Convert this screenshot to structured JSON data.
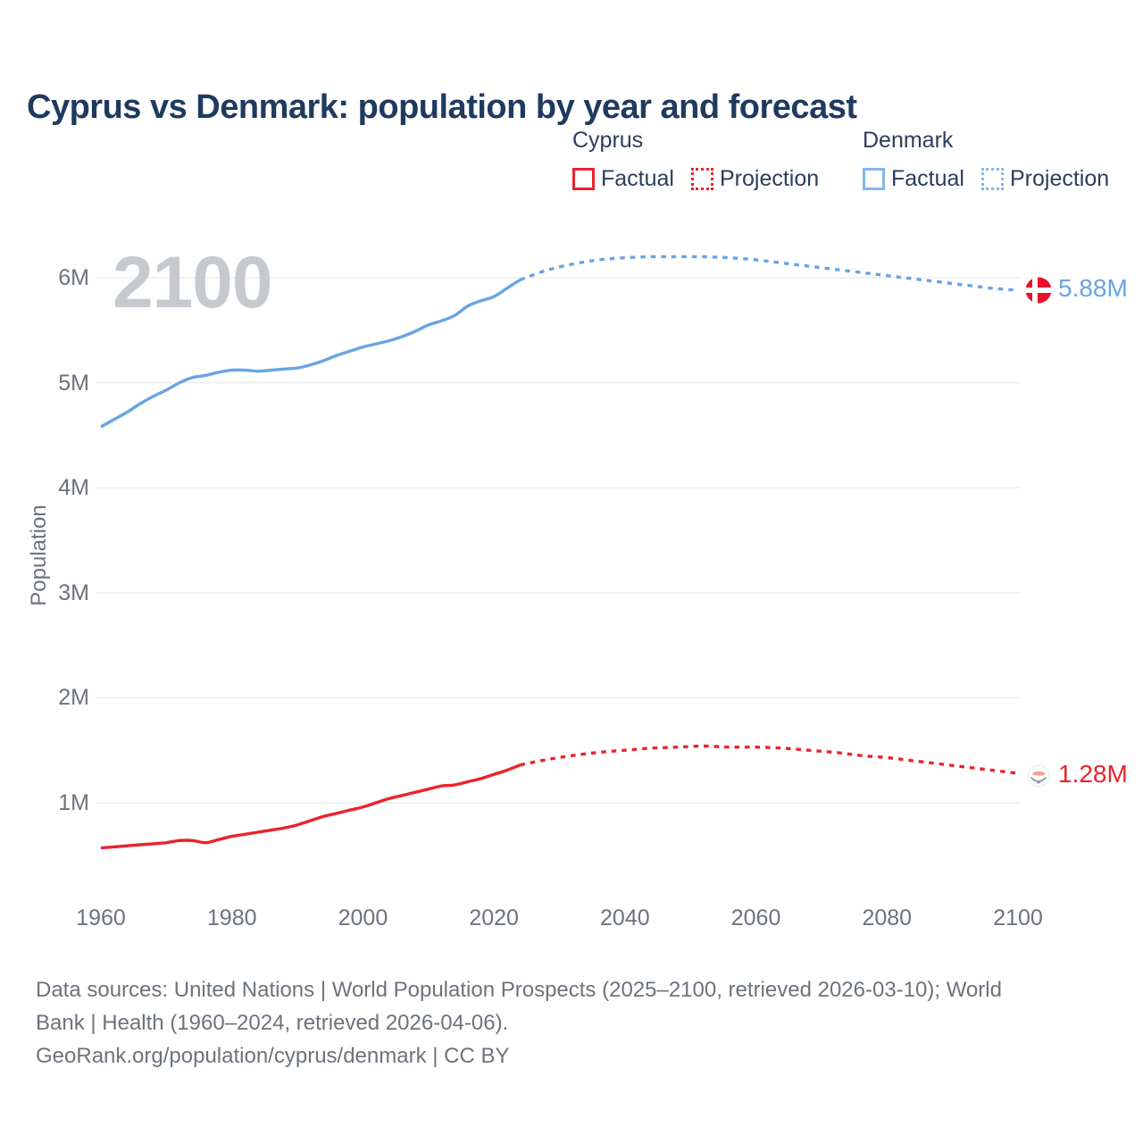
{
  "title": "Cyprus vs Denmark: population by year and forecast",
  "watermark": "2100",
  "colors": {
    "cyprus_red": "#e9242b",
    "denmark_blue": "#69a4e1",
    "denmark_swatch_blue": "#85b7ea",
    "flag_red": "#e8122d",
    "title_navy": "#1f3a5f",
    "axis_gray": "#6d727a",
    "gridline": "#ededee",
    "watermark_gray": "#c6c9ce"
  },
  "legend": {
    "groups": [
      {
        "name": "Cyprus",
        "color": "#e9242b",
        "items": [
          {
            "label": "Factual",
            "dash": false
          },
          {
            "label": "Projection",
            "dash": true
          }
        ]
      },
      {
        "name": "Denmark",
        "color": "#85b7ea",
        "items": [
          {
            "label": "Factual",
            "dash": false
          },
          {
            "label": "Projection",
            "dash": true
          }
        ]
      }
    ]
  },
  "footer": {
    "lines": [
      "Data sources: United Nations | World Population Prospects (2025–2100, retrieved 2026-03-10); World",
      "Bank | Health (1960–2024, retrieved 2026-04-06).",
      "GeoRank.org/population/cyprus/denmark | CC BY"
    ]
  },
  "chart_data": {
    "type": "line",
    "title": "Cyprus vs Denmark: population by year and forecast",
    "xlabel": "",
    "ylabel": "Population",
    "unit": "millions",
    "grid": "horizontal",
    "legend_position": "top-right",
    "xlim": [
      1960,
      2100
    ],
    "ylim": [
      0.4,
      6.5
    ],
    "x_ticks": [
      1960,
      1980,
      2000,
      2020,
      2040,
      2060,
      2080,
      2100
    ],
    "y_ticks": [
      "1M",
      "2M",
      "3M",
      "4M",
      "5M",
      "6M"
    ],
    "end_markers": [
      {
        "series": "Denmark",
        "year": 2100,
        "value": 5.88,
        "label": "5.88M"
      },
      {
        "series": "Cyprus",
        "year": 2100,
        "value": 1.28,
        "label": "1.28M"
      }
    ],
    "series": [
      {
        "name": "Denmark Factual",
        "color": "#69a4e1",
        "style": "solid",
        "points": [
          [
            1960,
            4.58
          ],
          [
            1962,
            4.65
          ],
          [
            1964,
            4.72
          ],
          [
            1966,
            4.8
          ],
          [
            1968,
            4.87
          ],
          [
            1970,
            4.93
          ],
          [
            1972,
            5.0
          ],
          [
            1974,
            5.05
          ],
          [
            1976,
            5.07
          ],
          [
            1978,
            5.1
          ],
          [
            1980,
            5.12
          ],
          [
            1982,
            5.12
          ],
          [
            1984,
            5.11
          ],
          [
            1986,
            5.12
          ],
          [
            1988,
            5.13
          ],
          [
            1990,
            5.14
          ],
          [
            1992,
            5.17
          ],
          [
            1994,
            5.21
          ],
          [
            1996,
            5.26
          ],
          [
            1998,
            5.3
          ],
          [
            2000,
            5.34
          ],
          [
            2002,
            5.37
          ],
          [
            2004,
            5.4
          ],
          [
            2006,
            5.44
          ],
          [
            2008,
            5.49
          ],
          [
            2010,
            5.55
          ],
          [
            2012,
            5.59
          ],
          [
            2014,
            5.64
          ],
          [
            2016,
            5.73
          ],
          [
            2018,
            5.78
          ],
          [
            2020,
            5.82
          ],
          [
            2022,
            5.9
          ],
          [
            2024,
            5.98
          ]
        ]
      },
      {
        "name": "Denmark Projection",
        "color": "#69a4e1",
        "style": "dotted",
        "points": [
          [
            2024,
            5.98
          ],
          [
            2028,
            6.07
          ],
          [
            2032,
            6.13
          ],
          [
            2036,
            6.17
          ],
          [
            2040,
            6.19
          ],
          [
            2044,
            6.2
          ],
          [
            2048,
            6.2
          ],
          [
            2052,
            6.2
          ],
          [
            2056,
            6.19
          ],
          [
            2060,
            6.17
          ],
          [
            2064,
            6.14
          ],
          [
            2068,
            6.11
          ],
          [
            2072,
            6.08
          ],
          [
            2076,
            6.05
          ],
          [
            2080,
            6.02
          ],
          [
            2084,
            5.99
          ],
          [
            2088,
            5.96
          ],
          [
            2092,
            5.93
          ],
          [
            2096,
            5.9
          ],
          [
            2100,
            5.88
          ]
        ]
      },
      {
        "name": "Cyprus Factual",
        "color": "#e9242b",
        "style": "solid",
        "points": [
          [
            1960,
            0.57
          ],
          [
            1962,
            0.58
          ],
          [
            1964,
            0.59
          ],
          [
            1966,
            0.6
          ],
          [
            1968,
            0.61
          ],
          [
            1970,
            0.62
          ],
          [
            1972,
            0.64
          ],
          [
            1974,
            0.64
          ],
          [
            1976,
            0.62
          ],
          [
            1978,
            0.65
          ],
          [
            1980,
            0.68
          ],
          [
            1982,
            0.7
          ],
          [
            1984,
            0.72
          ],
          [
            1986,
            0.74
          ],
          [
            1988,
            0.76
          ],
          [
            1990,
            0.79
          ],
          [
            1992,
            0.83
          ],
          [
            1994,
            0.87
          ],
          [
            1996,
            0.9
          ],
          [
            1998,
            0.93
          ],
          [
            2000,
            0.96
          ],
          [
            2002,
            1.0
          ],
          [
            2004,
            1.04
          ],
          [
            2006,
            1.07
          ],
          [
            2008,
            1.1
          ],
          [
            2010,
            1.13
          ],
          [
            2012,
            1.16
          ],
          [
            2014,
            1.17
          ],
          [
            2016,
            1.2
          ],
          [
            2018,
            1.23
          ],
          [
            2020,
            1.27
          ],
          [
            2022,
            1.31
          ],
          [
            2024,
            1.36
          ]
        ]
      },
      {
        "name": "Cyprus Projection",
        "color": "#e9242b",
        "style": "dotted",
        "points": [
          [
            2024,
            1.36
          ],
          [
            2028,
            1.41
          ],
          [
            2032,
            1.45
          ],
          [
            2036,
            1.48
          ],
          [
            2040,
            1.5
          ],
          [
            2044,
            1.52
          ],
          [
            2048,
            1.53
          ],
          [
            2052,
            1.54
          ],
          [
            2056,
            1.53
          ],
          [
            2060,
            1.53
          ],
          [
            2064,
            1.52
          ],
          [
            2068,
            1.5
          ],
          [
            2072,
            1.48
          ],
          [
            2076,
            1.45
          ],
          [
            2080,
            1.43
          ],
          [
            2084,
            1.4
          ],
          [
            2088,
            1.37
          ],
          [
            2092,
            1.34
          ],
          [
            2096,
            1.31
          ],
          [
            2100,
            1.28
          ]
        ]
      }
    ]
  }
}
